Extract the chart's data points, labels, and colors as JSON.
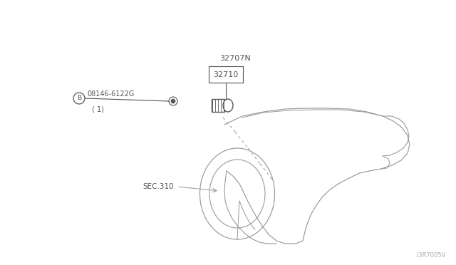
{
  "bg_color": "#ffffff",
  "line_color": "#999999",
  "dark_line_color": "#555555",
  "text_color": "#555555",
  "label_32707N": "32707N",
  "label_32710": "32710",
  "label_b_part": "08146-6122G",
  "label_b_sub": "( 1)",
  "label_sec310": "SEC.310",
  "label_watermark": ".I3R7005V",
  "figsize": [
    6.4,
    3.72
  ],
  "dpi": 100
}
